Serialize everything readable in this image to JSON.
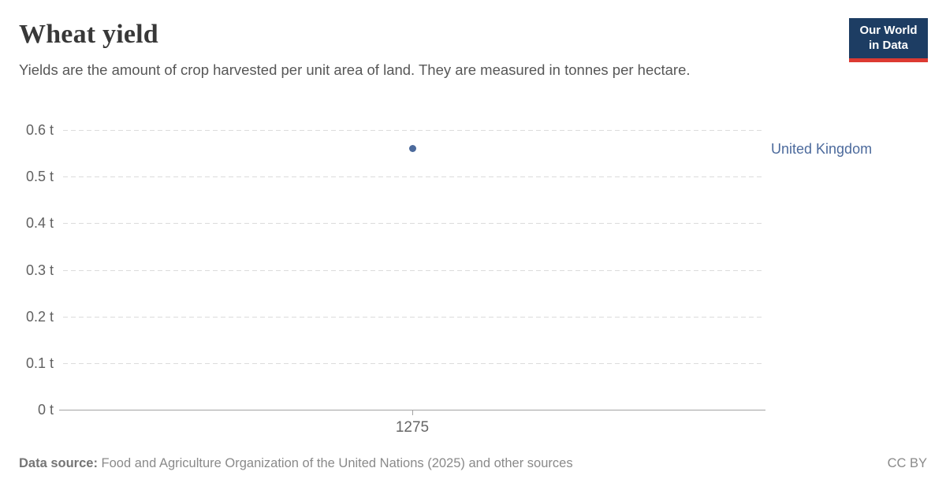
{
  "header": {
    "title": "Wheat yield",
    "subtitle": "Yields are the amount of crop harvested per unit area of land. They are measured in tonnes per hectare.",
    "logo": {
      "line1": "Our World",
      "line2": "in Data",
      "bg_color": "#1d3d63",
      "accent_color": "#dc3a32"
    }
  },
  "chart_data": {
    "type": "scatter",
    "title": "Wheat yield",
    "ylabel": "tonnes per hectare",
    "unit": "t",
    "ylim": [
      0,
      0.6
    ],
    "xlim": [
      1275,
      1275
    ],
    "grid": "horizontal-dashed",
    "legend_position": "right-of-point",
    "y_ticks": [
      {
        "value": 0.6,
        "label": "0.6 t"
      },
      {
        "value": 0.5,
        "label": "0.5 t"
      },
      {
        "value": 0.4,
        "label": "0.4 t"
      },
      {
        "value": 0.3,
        "label": "0.3 t"
      },
      {
        "value": 0.2,
        "label": "0.2 t"
      },
      {
        "value": 0.1,
        "label": "0.1 t"
      },
      {
        "value": 0,
        "label": "0 t"
      }
    ],
    "x_ticks": [
      {
        "value": 1275,
        "label": "1275"
      }
    ],
    "series": [
      {
        "name": "United Kingdom",
        "color": "#4c6a9c",
        "points": [
          {
            "x": 1275,
            "y": 0.56
          }
        ]
      }
    ]
  },
  "footer": {
    "source_label": "Data source:",
    "source_text": "Food and Agriculture Organization of the United Nations (2025) and other sources",
    "license": "CC BY"
  }
}
